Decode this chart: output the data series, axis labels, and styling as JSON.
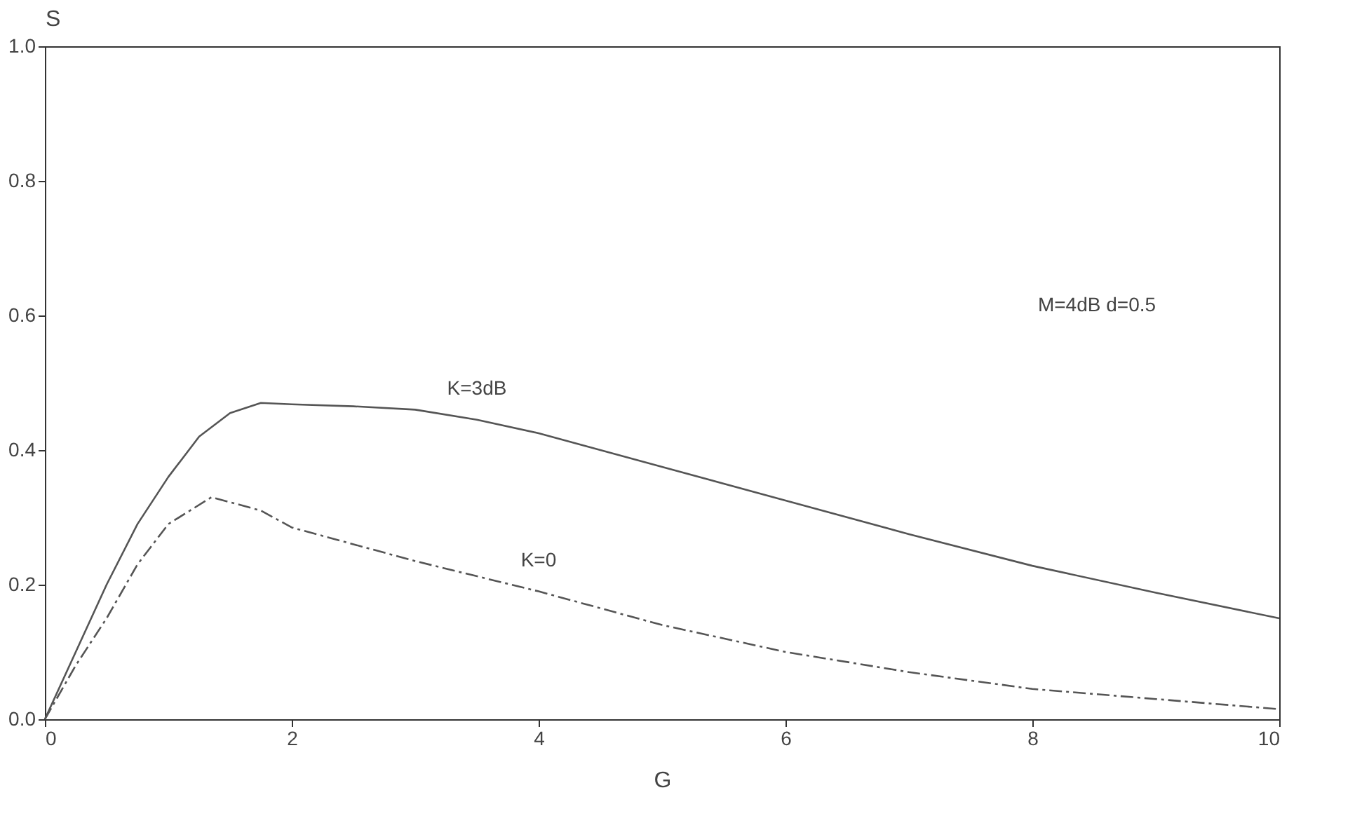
{
  "chart_data": {
    "type": "line",
    "xlabel": "G",
    "ylabel": "S",
    "xlim": [
      0,
      10
    ],
    "xticks": [
      0,
      2,
      4,
      6,
      8,
      10
    ],
    "ylim": [
      0,
      1
    ],
    "yticks": [
      {
        "value": 0,
        "label": "0.0"
      },
      {
        "value": 0.2,
        "label": "0.2"
      },
      {
        "value": 0.4,
        "label": "0.4"
      },
      {
        "value": 0.6,
        "label": "0.6"
      },
      {
        "value": 0.8,
        "label": "0.8"
      },
      {
        "value": 1,
        "label": "1.0"
      }
    ],
    "grid": false,
    "marker": "none",
    "series": [
      {
        "name": "K=3dB",
        "color": "#555555",
        "line_style": "solid",
        "x": [
          0,
          0.25,
          0.5,
          0.75,
          1,
          1.25,
          1.5,
          1.75,
          2,
          2.5,
          3,
          3.5,
          4,
          5,
          6,
          7,
          8,
          9,
          10
        ],
        "values": [
          0,
          0.1,
          0.2,
          0.29,
          0.36,
          0.42,
          0.455,
          0.47,
          0.468,
          0.465,
          0.46,
          0.445,
          0.425,
          0.375,
          0.325,
          0.275,
          0.228,
          0.188,
          0.15
        ]
      },
      {
        "name": "K=0",
        "color": "#555555",
        "line_style": "dashed",
        "x": [
          0,
          0.25,
          0.5,
          0.75,
          1,
          1.35,
          1.75,
          2,
          2.5,
          3,
          4,
          5,
          6,
          7,
          8,
          9,
          10
        ],
        "values": [
          0,
          0.08,
          0.15,
          0.23,
          0.29,
          0.33,
          0.31,
          0.285,
          0.26,
          0.235,
          0.19,
          0.14,
          0.1,
          0.07,
          0.045,
          0.03,
          0.015
        ]
      }
    ],
    "annotations": [
      "M=4dB  d=0.5"
    ]
  }
}
